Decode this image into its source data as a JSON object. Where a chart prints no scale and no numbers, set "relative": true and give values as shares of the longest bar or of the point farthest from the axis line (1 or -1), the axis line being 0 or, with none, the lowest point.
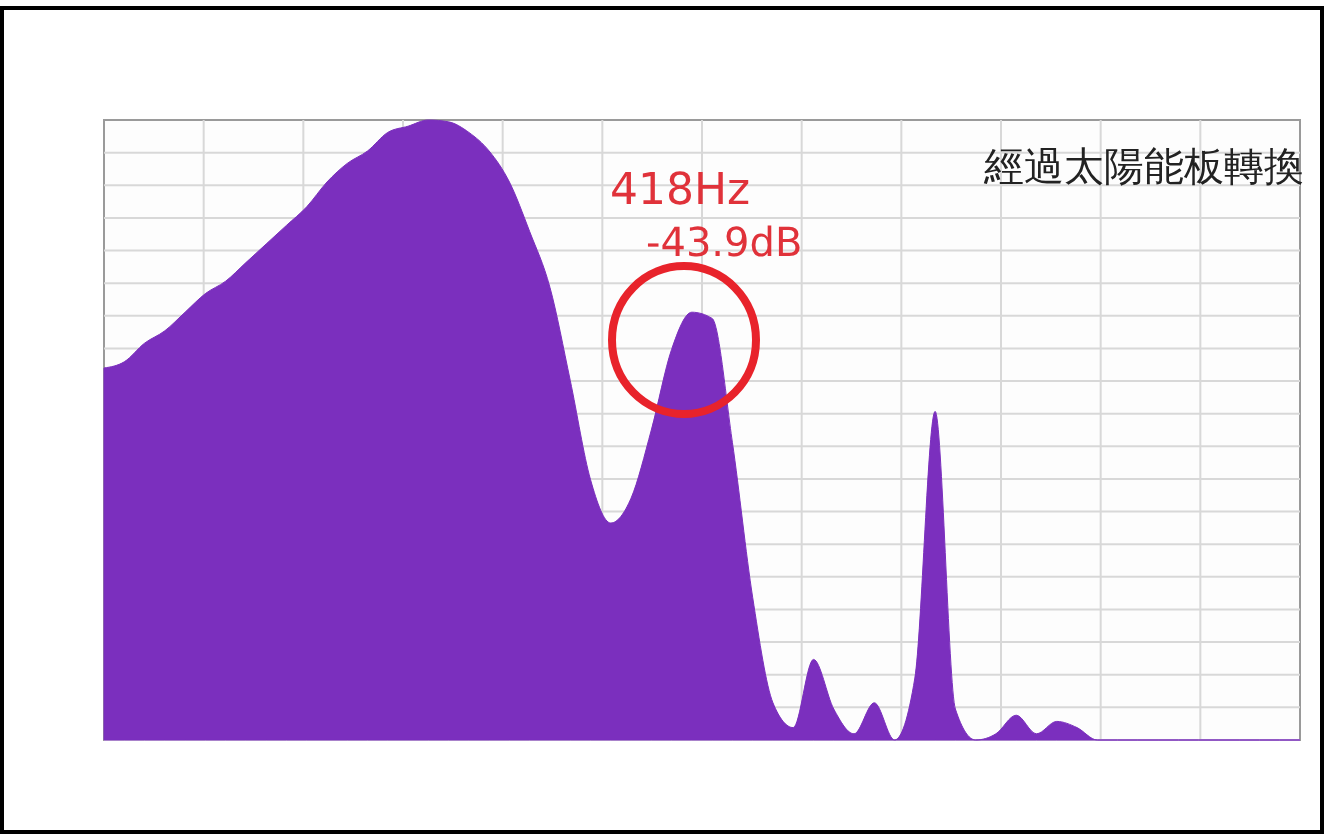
{
  "chart_data": {
    "type": "area",
    "relative": true,
    "grid": true,
    "color": "#7b2fbe",
    "categories": [
      null,
      null,
      null,
      null,
      null,
      null,
      null,
      null,
      null,
      null,
      null,
      null,
      null,
      null,
      null,
      null,
      null,
      null,
      null,
      null,
      null,
      null,
      null,
      null,
      null,
      null,
      null,
      null,
      null,
      null,
      null,
      null,
      null,
      null,
      null,
      null,
      null,
      null,
      null,
      null,
      null,
      null,
      null,
      null,
      null,
      null,
      null,
      null,
      null,
      null,
      null,
      null,
      null,
      null,
      null,
      null,
      null,
      null,
      null,
      null
    ],
    "values": [
      0.6,
      0.61,
      0.64,
      0.66,
      0.69,
      0.72,
      0.74,
      0.77,
      0.8,
      0.83,
      0.86,
      0.9,
      0.93,
      0.95,
      0.98,
      0.99,
      1,
      0.997,
      0.98,
      0.95,
      0.9,
      0.82,
      0.73,
      0.58,
      0.42,
      0.35,
      0.39,
      0.5,
      0.63,
      0.69,
      0.68,
      0.48,
      0.23,
      0.06,
      0.02,
      0.13,
      0.05,
      0.01,
      0.06,
      0,
      0.1,
      0.53,
      0.05,
      0,
      0.01,
      0.04,
      0.01,
      0.03,
      0.02,
      0,
      0,
      0,
      0,
      0,
      0,
      0,
      0,
      0,
      0,
      0
    ],
    "annotations": [
      "418Hz",
      "-43.9dB",
      "經過太陽能板轉換"
    ]
  }
}
